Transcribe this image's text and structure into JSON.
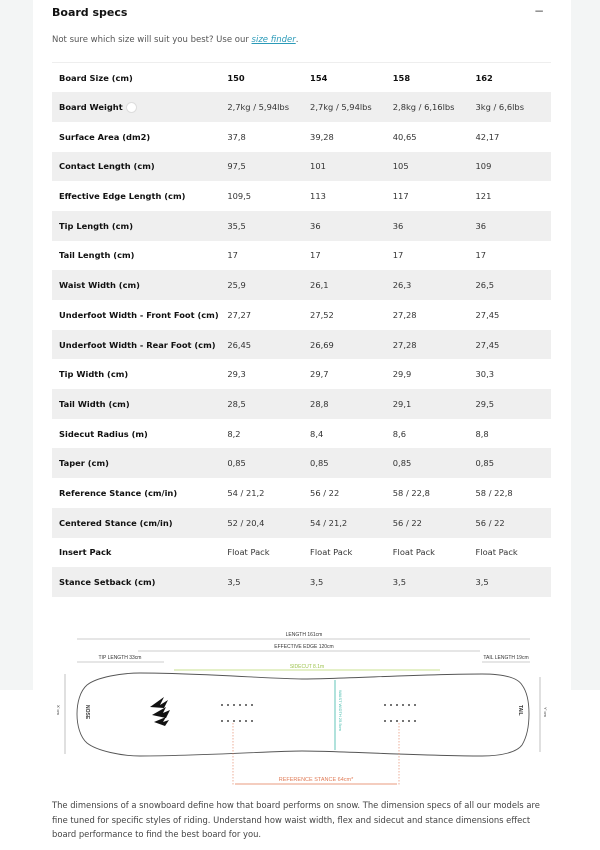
{
  "section": {
    "title": "Board specs",
    "toggle": "−",
    "intro_prefix": "Not sure which size will suit you best? Use our ",
    "intro_link": "size finder",
    "intro_suffix": "."
  },
  "table": {
    "rows": [
      {
        "label": "Board Size (cm)",
        "values": [
          "150",
          "154",
          "158",
          "162"
        ]
      },
      {
        "label": "Board Weight",
        "info": true,
        "values": [
          "2,7kg / 5,94lbs",
          "2,7kg / 5,94lbs",
          "2,8kg / 6,16lbs",
          "3kg / 6,6lbs"
        ]
      },
      {
        "label": "Surface Area (dm2)",
        "values": [
          "37,8",
          "39,28",
          "40,65",
          "42,17"
        ]
      },
      {
        "label": "Contact Length (cm)",
        "values": [
          "97,5",
          "101",
          "105",
          "109"
        ]
      },
      {
        "label": "Effective Edge Length (cm)",
        "values": [
          "109,5",
          "113",
          "117",
          "121"
        ]
      },
      {
        "label": "Tip Length (cm)",
        "values": [
          "35,5",
          "36",
          "36",
          "36"
        ]
      },
      {
        "label": "Tail Length (cm)",
        "values": [
          "17",
          "17",
          "17",
          "17"
        ]
      },
      {
        "label": "Waist Width (cm)",
        "values": [
          "25,9",
          "26,1",
          "26,3",
          "26,5"
        ]
      },
      {
        "label": "Underfoot Width - Front Foot (cm)",
        "values": [
          "27,27",
          "27,52",
          "27,28",
          "27,45"
        ]
      },
      {
        "label": "Underfoot Width - Rear Foot (cm)",
        "values": [
          "26,45",
          "26,69",
          "27,28",
          "27,45"
        ]
      },
      {
        "label": "Tip Width (cm)",
        "values": [
          "29,3",
          "29,7",
          "29,9",
          "30,3"
        ]
      },
      {
        "label": "Tail Width (cm)",
        "values": [
          "28,5",
          "28,8",
          "29,1",
          "29,5"
        ]
      },
      {
        "label": "Sidecut Radius (m)",
        "values": [
          "8,2",
          "8,4",
          "8,6",
          "8,8"
        ]
      },
      {
        "label": "Taper (cm)",
        "values": [
          "0,85",
          "0,85",
          "0,85",
          "0,85"
        ]
      },
      {
        "label": "Reference Stance (cm/in)",
        "values": [
          "54 / 21,2",
          "56 / 22",
          "58 / 22,8",
          "58 / 22,8"
        ]
      },
      {
        "label": "Centered Stance (cm/in)",
        "values": [
          "52 / 20,4",
          "54 / 21,2",
          "56 / 22",
          "56 / 22"
        ]
      },
      {
        "label": "Insert Pack",
        "values": [
          "Float Pack",
          "Float Pack",
          "Float Pack",
          "Float Pack"
        ]
      },
      {
        "label": "Stance Setback (cm)",
        "values": [
          "3,5",
          "3,5",
          "3,5",
          "3,5"
        ]
      }
    ]
  },
  "diagram": {
    "length": "LENGTH 161cm",
    "effective_edge": "EFFECTIVE EDGE 120cm",
    "tip_length": "TIP LENGTH 33cm",
    "tail_length": "TAIL LENGTH 19cm",
    "sidecut": "SIDECUT 8.1m",
    "waist_width": "WAIST WIDTH 25.5cm",
    "nose": "NOSE",
    "tail": "TAIL",
    "nose_width": "X' cm",
    "tail_width": "Y' cm",
    "reference_stance": "REFERENCE STANCE 64cm*",
    "colors": {
      "sidecut": "#b8d86a",
      "waist": "#3bb8a8",
      "stance": "#e07a55"
    }
  },
  "description": "The dimensions of a snowboard define how that board performs on snow. The dimension specs of all our models are fine tuned for specific styles of riding. Understand how waist width, flex and sidecut and stance dimensions effect board performance to find the best board for you."
}
